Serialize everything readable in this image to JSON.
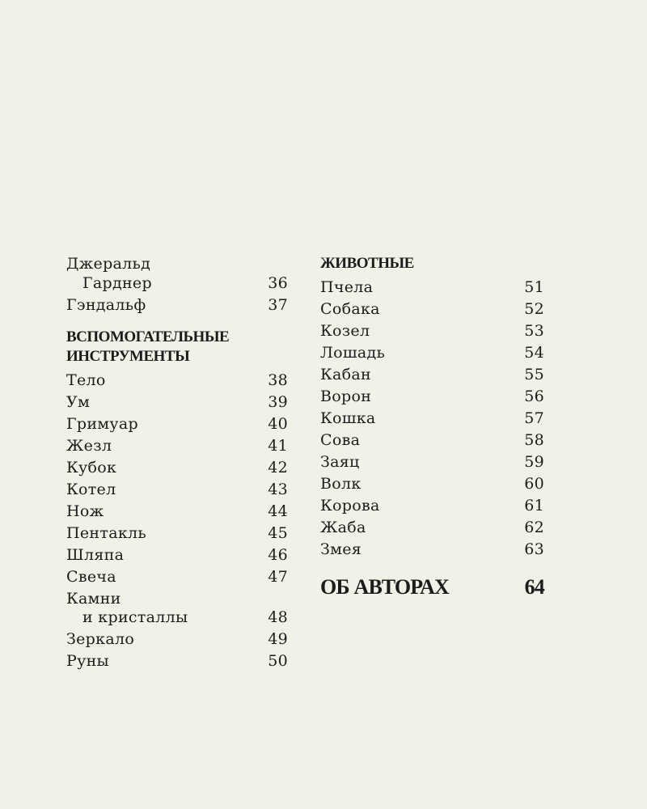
{
  "left": {
    "entries_top": [
      {
        "lines": [
          "Джеральд",
          "Гарднер"
        ],
        "page": "36"
      },
      {
        "lines": [
          "Гэндальф"
        ],
        "page": "37"
      }
    ],
    "section_heading": [
      "ВСПОМОГАТЕЛЬНЫЕ",
      "ИНСТРУМЕНТЫ"
    ],
    "entries": [
      {
        "lines": [
          "Тело"
        ],
        "page": "38"
      },
      {
        "lines": [
          "Ум"
        ],
        "page": "39"
      },
      {
        "lines": [
          "Гримуар"
        ],
        "page": "40"
      },
      {
        "lines": [
          "Жезл"
        ],
        "page": "41"
      },
      {
        "lines": [
          "Кубок"
        ],
        "page": "42"
      },
      {
        "lines": [
          "Котел"
        ],
        "page": "43"
      },
      {
        "lines": [
          "Нож"
        ],
        "page": "44"
      },
      {
        "lines": [
          "Пентакль"
        ],
        "page": "45"
      },
      {
        "lines": [
          "Шляпа"
        ],
        "page": "46"
      },
      {
        "lines": [
          "Свеча"
        ],
        "page": "47"
      },
      {
        "lines": [
          "Камни",
          "и кристаллы"
        ],
        "page": "48"
      },
      {
        "lines": [
          "Зеркало"
        ],
        "page": "49"
      },
      {
        "lines": [
          "Руны"
        ],
        "page": "50"
      }
    ]
  },
  "right": {
    "section_heading": "ЖИВОТНЫЕ",
    "entries": [
      {
        "title": "Пчела",
        "page": "51"
      },
      {
        "title": "Собака",
        "page": "52"
      },
      {
        "title": "Козел",
        "page": "53"
      },
      {
        "title": "Лошадь",
        "page": "54"
      },
      {
        "title": "Кабан",
        "page": "55"
      },
      {
        "title": "Ворон",
        "page": "56"
      },
      {
        "title": "Кошка",
        "page": "57"
      },
      {
        "title": "Сова",
        "page": "58"
      },
      {
        "title": "Заяц",
        "page": "59"
      },
      {
        "title": "Волк",
        "page": "60"
      },
      {
        "title": "Корова",
        "page": "61"
      },
      {
        "title": "Жаба",
        "page": "62"
      },
      {
        "title": "Змея",
        "page": "63"
      }
    ],
    "about": {
      "title": "ОБ АВТОРАХ",
      "page": "64"
    }
  }
}
